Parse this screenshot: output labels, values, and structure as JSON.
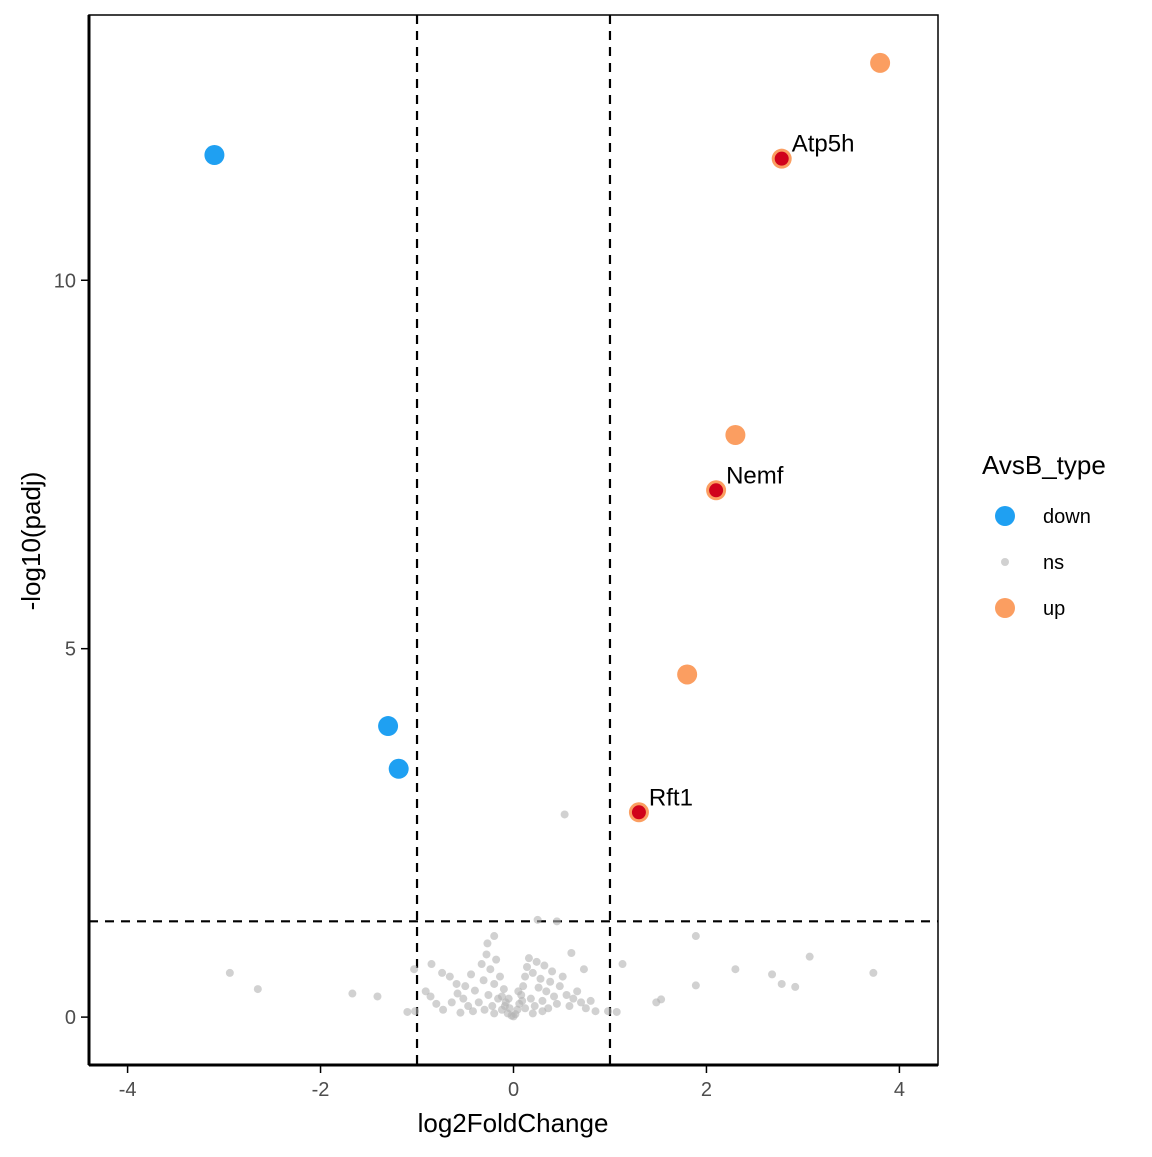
{
  "chart_data": {
    "type": "scatter",
    "title": "",
    "xlabel": "log2FoldChange",
    "ylabel": "-log10(padj)",
    "xlim": [
      -4.4,
      4.4
    ],
    "ylim": [
      -0.65,
      13.6
    ],
    "x_ticks": [
      -4,
      -2,
      0,
      2,
      4
    ],
    "x_tick_labels": [
      "-4",
      "-2",
      "0",
      "2",
      "4"
    ],
    "y_ticks": [
      0,
      5,
      10
    ],
    "y_tick_labels": [
      "0",
      "5",
      "10"
    ],
    "grid": false,
    "threshold_lines": {
      "vertical": [
        -1,
        1
      ],
      "horizontal": [
        1.3
      ]
    },
    "legend": {
      "title": "AvsB_type",
      "placement": "right",
      "entries": [
        {
          "label": "down",
          "color": "#1fa0f2"
        },
        {
          "label": "ns",
          "color": "#b3b3b3"
        },
        {
          "label": "up",
          "color": "#fb9e61"
        }
      ]
    },
    "series": [
      {
        "name": "down",
        "color": "#1fa0f2",
        "points": [
          {
            "x": -3.1,
            "y": 11.7
          },
          {
            "x": -1.3,
            "y": 3.95
          },
          {
            "x": -1.19,
            "y": 3.37
          }
        ]
      },
      {
        "name": "up",
        "color": "#fb9e61",
        "points": [
          {
            "x": 3.8,
            "y": 12.95
          },
          {
            "x": 2.78,
            "y": 11.65
          },
          {
            "x": 2.3,
            "y": 7.9
          },
          {
            "x": 2.1,
            "y": 7.15
          },
          {
            "x": 1.8,
            "y": 4.65
          },
          {
            "x": 1.3,
            "y": 2.78
          }
        ]
      },
      {
        "name": "ns",
        "color": "#b3b3b3",
        "points": [
          {
            "x": 0.53,
            "y": 2.75
          },
          {
            "x": 0.25,
            "y": 1.32
          },
          {
            "x": 0.45,
            "y": 1.3
          },
          {
            "x": 1.89,
            "y": 1.1
          },
          {
            "x": -0.2,
            "y": 1.1
          },
          {
            "x": -0.27,
            "y": 1.0
          },
          {
            "x": 0.6,
            "y": 0.87
          },
          {
            "x": 3.07,
            "y": 0.82
          },
          {
            "x": -2.94,
            "y": 0.6
          },
          {
            "x": 3.73,
            "y": 0.6
          },
          {
            "x": 2.3,
            "y": 0.65
          },
          {
            "x": 2.68,
            "y": 0.58
          },
          {
            "x": 1.13,
            "y": 0.72
          },
          {
            "x": -2.65,
            "y": 0.38
          },
          {
            "x": -1.67,
            "y": 0.32
          },
          {
            "x": -1.41,
            "y": 0.28
          },
          {
            "x": 1.89,
            "y": 0.43
          },
          {
            "x": 2.78,
            "y": 0.45
          },
          {
            "x": 2.92,
            "y": 0.41
          },
          {
            "x": 1.48,
            "y": 0.2
          },
          {
            "x": 1.53,
            "y": 0.24
          },
          {
            "x": -1.1,
            "y": 0.07
          },
          {
            "x": -1.02,
            "y": 0.08
          },
          {
            "x": 1.07,
            "y": 0.07
          },
          {
            "x": 0.98,
            "y": 0.08
          },
          {
            "x": -1.03,
            "y": 0.65
          },
          {
            "x": 0.73,
            "y": 0.65
          },
          {
            "x": -0.85,
            "y": 0.72
          },
          {
            "x": -0.74,
            "y": 0.6
          },
          {
            "x": -0.66,
            "y": 0.55
          },
          {
            "x": -0.59,
            "y": 0.45
          },
          {
            "x": -0.91,
            "y": 0.35
          },
          {
            "x": -0.86,
            "y": 0.28
          },
          {
            "x": -0.8,
            "y": 0.18
          },
          {
            "x": -0.73,
            "y": 0.1
          },
          {
            "x": -0.64,
            "y": 0.2
          },
          {
            "x": -0.58,
            "y": 0.32
          },
          {
            "x": -0.52,
            "y": 0.25
          },
          {
            "x": -0.47,
            "y": 0.15
          },
          {
            "x": -0.42,
            "y": 0.08
          },
          {
            "x": -0.55,
            "y": 0.06
          },
          {
            "x": -0.5,
            "y": 0.42
          },
          {
            "x": -0.44,
            "y": 0.58
          },
          {
            "x": -0.4,
            "y": 0.36
          },
          {
            "x": -0.36,
            "y": 0.2
          },
          {
            "x": -0.33,
            "y": 0.72
          },
          {
            "x": -0.31,
            "y": 0.5
          },
          {
            "x": -0.28,
            "y": 0.85
          },
          {
            "x": -0.26,
            "y": 0.3
          },
          {
            "x": -0.24,
            "y": 0.65
          },
          {
            "x": -0.22,
            "y": 0.15
          },
          {
            "x": -0.2,
            "y": 0.45
          },
          {
            "x": -0.18,
            "y": 0.78
          },
          {
            "x": -0.16,
            "y": 0.25
          },
          {
            "x": -0.14,
            "y": 0.55
          },
          {
            "x": -0.12,
            "y": 0.1
          },
          {
            "x": -0.1,
            "y": 0.38
          },
          {
            "x": -0.08,
            "y": 0.2
          },
          {
            "x": -0.06,
            "y": 0.05
          },
          {
            "x": -0.04,
            "y": 0.12
          },
          {
            "x": -0.02,
            "y": 0.02
          },
          {
            "x": 0.0,
            "y": 0.01
          },
          {
            "x": 0.02,
            "y": 0.04
          },
          {
            "x": 0.04,
            "y": 0.1
          },
          {
            "x": 0.06,
            "y": 0.18
          },
          {
            "x": 0.08,
            "y": 0.3
          },
          {
            "x": 0.1,
            "y": 0.42
          },
          {
            "x": 0.12,
            "y": 0.55
          },
          {
            "x": 0.14,
            "y": 0.68
          },
          {
            "x": 0.16,
            "y": 0.8
          },
          {
            "x": 0.18,
            "y": 0.25
          },
          {
            "x": 0.2,
            "y": 0.6
          },
          {
            "x": 0.22,
            "y": 0.15
          },
          {
            "x": 0.24,
            "y": 0.75
          },
          {
            "x": 0.26,
            "y": 0.4
          },
          {
            "x": 0.28,
            "y": 0.52
          },
          {
            "x": 0.3,
            "y": 0.22
          },
          {
            "x": 0.32,
            "y": 0.7
          },
          {
            "x": 0.34,
            "y": 0.35
          },
          {
            "x": 0.36,
            "y": 0.12
          },
          {
            "x": 0.38,
            "y": 0.48
          },
          {
            "x": 0.4,
            "y": 0.62
          },
          {
            "x": 0.42,
            "y": 0.28
          },
          {
            "x": 0.45,
            "y": 0.18
          },
          {
            "x": 0.48,
            "y": 0.42
          },
          {
            "x": 0.51,
            "y": 0.55
          },
          {
            "x": 0.55,
            "y": 0.3
          },
          {
            "x": 0.58,
            "y": 0.15
          },
          {
            "x": 0.62,
            "y": 0.25
          },
          {
            "x": 0.66,
            "y": 0.35
          },
          {
            "x": 0.7,
            "y": 0.2
          },
          {
            "x": 0.75,
            "y": 0.12
          },
          {
            "x": 0.8,
            "y": 0.22
          },
          {
            "x": 0.85,
            "y": 0.08
          },
          {
            "x": -0.3,
            "y": 0.1
          },
          {
            "x": -0.2,
            "y": 0.05
          },
          {
            "x": 0.2,
            "y": 0.05
          },
          {
            "x": 0.3,
            "y": 0.08
          },
          {
            "x": 0.12,
            "y": 0.12
          },
          {
            "x": -0.12,
            "y": 0.28
          },
          {
            "x": 0.05,
            "y": 0.35
          },
          {
            "x": -0.05,
            "y": 0.25
          },
          {
            "x": 0.09,
            "y": 0.22
          },
          {
            "x": -0.09,
            "y": 0.15
          }
        ]
      }
    ],
    "annotations": [
      {
        "label": "Atp5h",
        "x": 2.78,
        "y": 11.65,
        "marker_color": "#d0021b"
      },
      {
        "label": "Nemf",
        "x": 2.1,
        "y": 7.15,
        "marker_color": "#d0021b"
      },
      {
        "label": "Rft1",
        "x": 1.3,
        "y": 2.78,
        "marker_color": "#d0021b"
      }
    ]
  }
}
